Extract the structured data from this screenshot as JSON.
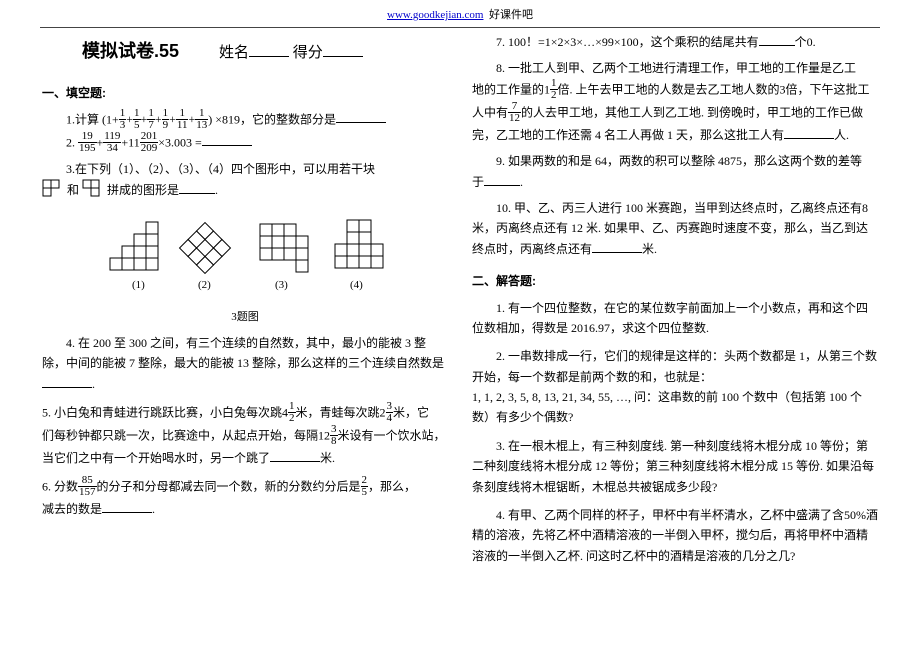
{
  "header": {
    "url": "www.goodkejian.com",
    "site": "好课件吧"
  },
  "title": "模拟试卷.55",
  "name_label": "姓名",
  "score_label": "得分",
  "sec1": "一、填空题:",
  "sec2": "二、解答题:",
  "q1": {
    "lead": "1.计算 (1+",
    "tail": ") ×819，它的整数部分是",
    "fracs": [
      "1/3",
      "1/5",
      "1/7",
      "1/9",
      "1/11",
      "1/13"
    ]
  },
  "q2": {
    "lead": "2.  ",
    "a": "19/195",
    "b": "119/34",
    "c": "201/209",
    "mid1": "+",
    "mid2": "+11",
    "tail": "×3.003 ="
  },
  "q3a": "3.在下列（1）、（2）、（3）、（4）四个图形中，可以用若干块",
  "q3b": "拼成的图形是",
  "q3lbl": {
    "a": "(1)",
    "b": "(2)",
    "c": "(3)",
    "d": "(4)"
  },
  "figcap": "3题图",
  "q4": "4. 在 200 至 300 之间，有三个连续的自然数，其中，最小的能被 3 整除，中间的能被 7 整除，最大的能被 13 整除，那么这样的三个连续自然数是",
  "q5a": "5. 小白兔和青蛙进行跳跃比赛，小白兔每次跳4",
  "q5b": "米，青蛙每次跳2",
  "q5c": "米，它",
  "q5d": "们每秒钟都只跳一次，比赛途中，从起点开始，每隔12",
  "q5e": "米设有一个饮水站，",
  "q5f": "当它们之中有一个开始喝水时，另一个跳了",
  "q5g": "米.",
  "q6a": "6. 分数",
  "q6b": "的分子和分母都减去同一个数，新的分数约分后是",
  "q6c": "，那么，",
  "q6d": "减去的数是",
  "r7": "7. 100！=1×2×3×…×99×100，这个乘积的结尾共有",
  "r7b": "个0.",
  "r8a": "8. 一批工人到甲、乙两个工地进行清理工作，甲工地的工作量是乙工",
  "r8b": "地的工作量的1",
  "r8c": "倍. 上午去甲工地的人数是去乙工地人数的3倍，下午这批工",
  "r8d": "人中有",
  "r8e": "的人去甲工地，其他工人到乙工地. 到傍晚时，甲工地的工作已做",
  "r8f": "完，乙工地的工作还需 4 名工人再做 1 天，那么这批工人有",
  "r8g": "人.",
  "r9a": "9. 如果两数的和是 64，两数的积可以整除 4875，那么这两个数的差等",
  "r9b": "于",
  "r10a": "10. 甲、乙、丙三人进行 100 米赛跑，当甲到达终点时，乙离终点还有8 米，丙离终点还有 12 米. 如果甲、乙、丙赛跑时速度不变，那么，当乙到达终点时，丙离终点还有",
  "r10b": "米.",
  "a1": "1. 有一个四位整数，在它的某位数字前面加上一个小数点，再和这个四位数相加，得数是 2016.97，求这个四位整数.",
  "a2a": "2. 一串数排成一行，它们的规律是这样的：头两个数都是 1，从第三个数开始，每一个数都是前两个数的和，也就是：",
  "a2b": "1, 1, 2, 3, 5, 8, 13, 21, 34, 55, …, 问：这串数的前 100 个数中（包括第 100 个数）有多少个偶数?",
  "a3": "3. 在一根木棍上，有三种刻度线. 第一种刻度线将木棍分成 10 等份；第二种刻度线将木棍分成 12 等份；第三种刻度线将木棍分成 15 等份. 如果沿每条刻度线将木棍锯断，木棍总共被锯成多少段?",
  "a4": "4. 有甲、乙两个同样的杯子，甲杯中有半杯清水，乙杯中盛满了含50%酒精的溶液，先将乙杯中酒精溶液的一半倒入甲杯，搅匀后，再将甲杯中酒精溶液的一半倒入乙杯. 问这时乙杯中的酒精是溶液的几分之几?",
  "colors": {
    "text": "#000000",
    "bg": "#ffffff",
    "link": "#0000cc",
    "rule": "#444444"
  }
}
